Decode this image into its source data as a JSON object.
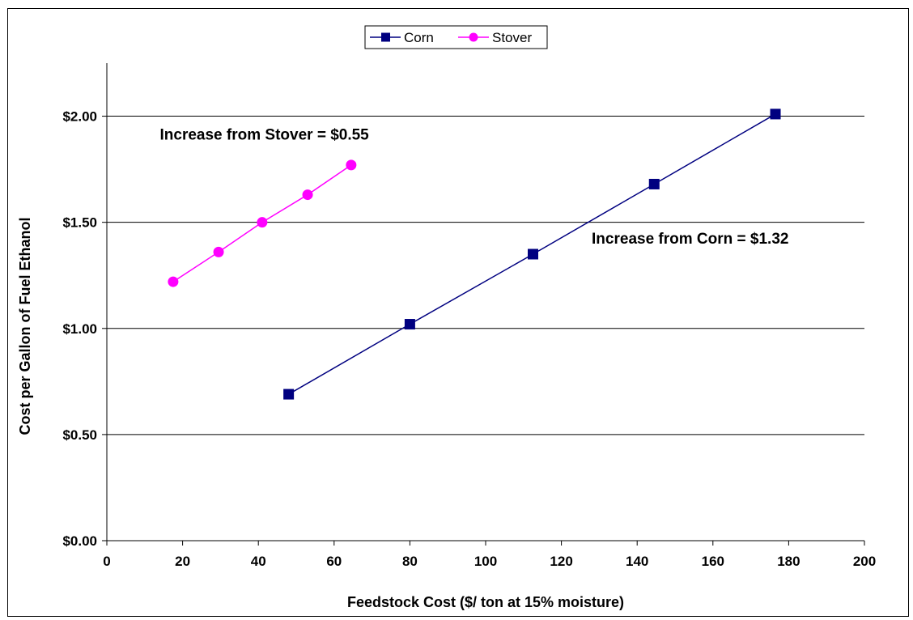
{
  "chart_data": {
    "type": "line",
    "title": "",
    "xlabel": "Feedstock Cost ($/ ton at 15% moisture)",
    "ylabel": "Cost per Gallon of Fuel Ethanol",
    "xlim": [
      0,
      200
    ],
    "ylim": [
      0,
      2.25
    ],
    "x_ticks": [
      0,
      20,
      40,
      60,
      80,
      100,
      120,
      140,
      160,
      180,
      200
    ],
    "x_tick_labels": [
      "0",
      "20",
      "40",
      "60",
      "80",
      "100",
      "120",
      "140",
      "160",
      "180",
      "200"
    ],
    "y_ticks": [
      0,
      0.5,
      1.0,
      1.5,
      2.0
    ],
    "y_tick_labels": [
      "$0.00",
      "$0.50",
      "$1.00",
      "$1.50",
      "$2.00"
    ],
    "grid": "horizontal",
    "legend_position": "top-center",
    "series": [
      {
        "name": "Corn",
        "color": "#000080",
        "marker": "square",
        "x": [
          48,
          80,
          112.5,
          144.5,
          176.5
        ],
        "y": [
          0.69,
          1.02,
          1.35,
          1.68,
          2.01
        ]
      },
      {
        "name": "Stover",
        "color": "#FF00FF",
        "marker": "circle",
        "x": [
          17.5,
          29.5,
          41,
          53,
          64.5
        ],
        "y": [
          1.22,
          1.36,
          1.5,
          1.63,
          1.77
        ]
      }
    ],
    "annotations": [
      {
        "text": "Increase from Stover = $0.55",
        "x": 14,
        "y": 1.89
      },
      {
        "text": "Increase from Corn = $1.32",
        "x": 128,
        "y": 1.4
      }
    ]
  }
}
